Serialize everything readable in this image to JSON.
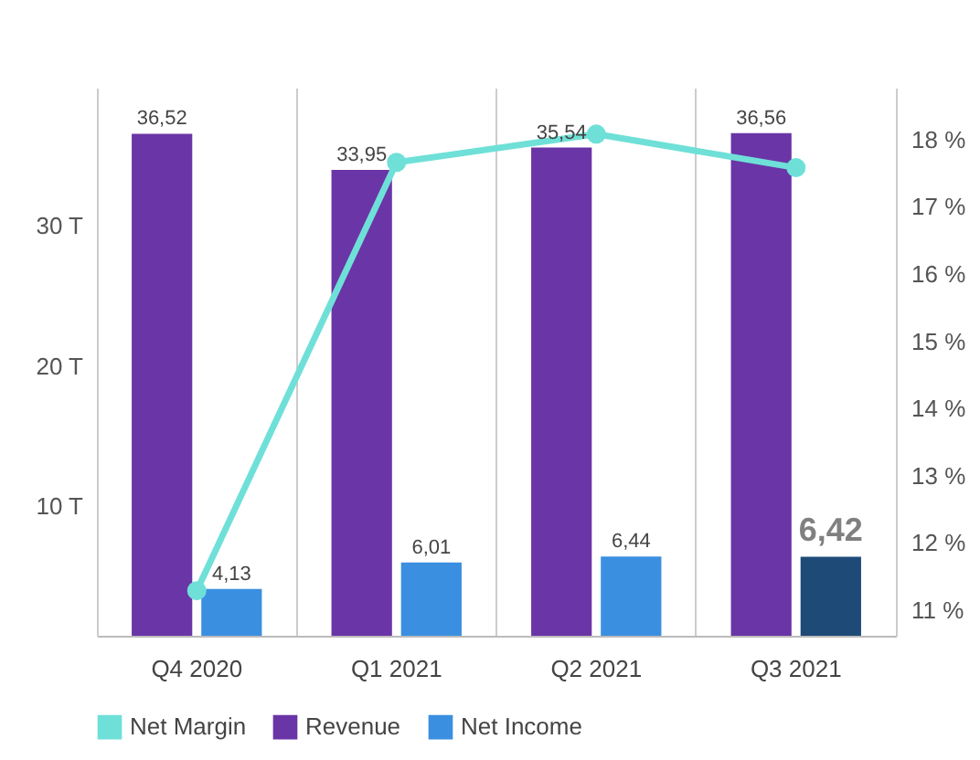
{
  "chart_data": {
    "type": "bar",
    "categories": [
      "Q4 2020",
      "Q1 2021",
      "Q2 2021",
      "Q3 2021"
    ],
    "series": [
      {
        "name": "Net Margin",
        "type": "line",
        "axis": "y2",
        "color": "#6fe0d8",
        "values": [
          11.29,
          17.66,
          18.08,
          17.58
        ]
      },
      {
        "name": "Revenue",
        "type": "bar",
        "color": "#6a35a6",
        "values": [
          36.52,
          33.95,
          35.54,
          36.56
        ],
        "value_labels": [
          "36,52",
          "33,95",
          "35,54",
          "36,56"
        ]
      },
      {
        "name": "Net Income",
        "type": "bar",
        "color": "#3a8fe0",
        "colors": [
          "#3a8fe0",
          "#3a8fe0",
          "#3a8fe0",
          "#1e4a78"
        ],
        "values": [
          4.13,
          6.01,
          6.44,
          6.42
        ],
        "value_labels": [
          "4,13",
          "6,01",
          "6,44",
          "6,42"
        ]
      }
    ],
    "ylim": [
      0.8,
      39.8
    ],
    "yticks": [
      {
        "value": 10,
        "label": "10 T"
      },
      {
        "value": 20,
        "label": "20 T"
      },
      {
        "value": 30,
        "label": "30 T"
      }
    ],
    "y2lim": [
      10.62,
      18.77
    ],
    "y2ticks": [
      {
        "value": 11,
        "label": "11 %"
      },
      {
        "value": 12,
        "label": "12 %"
      },
      {
        "value": 13,
        "label": "13 %"
      },
      {
        "value": 14,
        "label": "14 %"
      },
      {
        "value": 15,
        "label": "15 %"
      },
      {
        "value": 16,
        "label": "16 %"
      },
      {
        "value": 17,
        "label": "17 %"
      },
      {
        "value": 18,
        "label": "18 %"
      }
    ],
    "grid": "x",
    "legend": "bottom",
    "marker": "circle",
    "line_style": "solid"
  }
}
